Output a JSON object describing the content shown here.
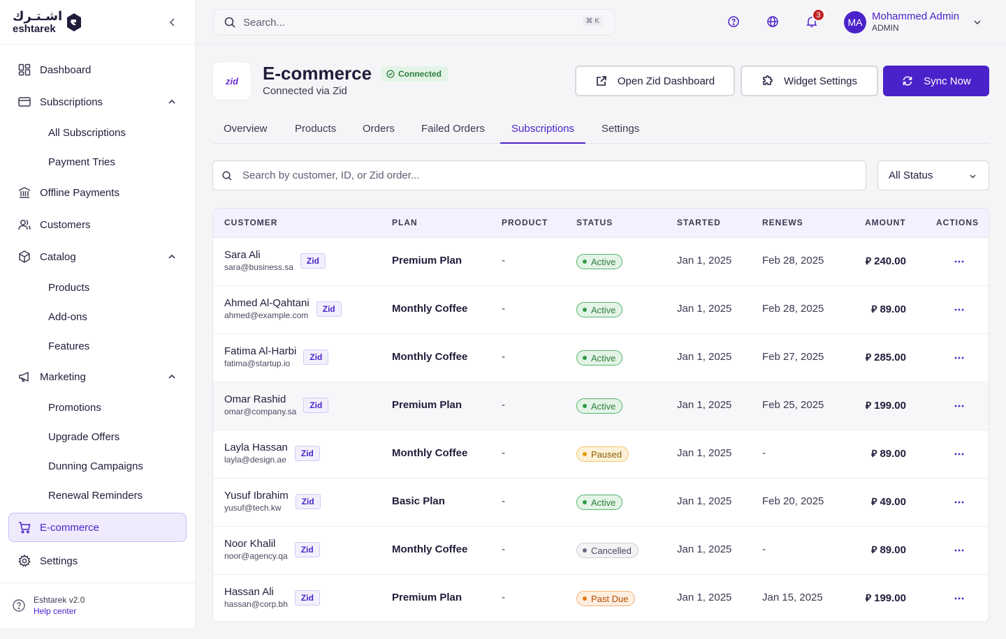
{
  "brand": {
    "arabic": "اشـتـرك",
    "english": "eshtarek"
  },
  "sidebar": {
    "items": [
      {
        "label": "Dashboard",
        "icon": "grid-icon"
      },
      {
        "label": "Subscriptions",
        "icon": "card-icon",
        "children": [
          "All Subscriptions",
          "Payment Tries"
        ]
      },
      {
        "label": "Offline Payments",
        "icon": "bank-icon"
      },
      {
        "label": "Customers",
        "icon": "users-icon"
      },
      {
        "label": "Catalog",
        "icon": "box-icon",
        "children": [
          "Products",
          "Add-ons",
          "Features"
        ]
      },
      {
        "label": "Marketing",
        "icon": "megaphone-icon",
        "children": [
          "Promotions",
          "Upgrade Offers",
          "Dunning Campaigns",
          "Renewal Reminders"
        ]
      },
      {
        "label": "E-commerce",
        "icon": "cart-icon",
        "active": true
      },
      {
        "label": "Settings",
        "icon": "gear-icon"
      }
    ],
    "footer": {
      "version": "Eshtarek v2.0",
      "help": "Help center"
    }
  },
  "topbar": {
    "search_placeholder": "Search...",
    "shortcut": "⌘ K",
    "notifications_count": "3",
    "user": {
      "initials": "MA",
      "name": "Mohammed Admin",
      "role": "ADMIN"
    }
  },
  "header": {
    "logo_text": "zid",
    "title": "E-commerce",
    "badge": "Connected",
    "subtitle": "Connected via Zid",
    "buttons": {
      "open_dashboard": "Open Zid Dashboard",
      "widget_settings": "Widget Settings",
      "sync_now": "Sync Now"
    }
  },
  "tabs": [
    "Overview",
    "Products",
    "Orders",
    "Failed Orders",
    "Subscriptions",
    "Settings"
  ],
  "active_tab": "Subscriptions",
  "filters": {
    "search_placeholder": "Search by customer, ID, or Zid order...",
    "status_value": "All Status"
  },
  "table": {
    "columns": [
      "CUSTOMER",
      "PLAN",
      "PRODUCT",
      "STATUS",
      "STARTED",
      "RENEWS",
      "AMOUNT",
      "ACTIONS"
    ],
    "source_badge": "Zid",
    "currency_symbol": "⃁",
    "rows": [
      {
        "name": "Sara Ali",
        "email": "sara@business.sa",
        "plan": "Premium Plan",
        "product": "-",
        "status": "Active",
        "started": "Jan 1, 2025",
        "renews": "Feb 28, 2025",
        "amount": "240.00"
      },
      {
        "name": "Ahmed Al-Qahtani",
        "email": "ahmed@example.com",
        "plan": "Monthly Coffee",
        "product": "-",
        "status": "Active",
        "started": "Jan 1, 2025",
        "renews": "Feb 28, 2025",
        "amount": "89.00"
      },
      {
        "name": "Fatima Al-Harbi",
        "email": "fatima@startup.io",
        "plan": "Monthly Coffee",
        "product": "-",
        "status": "Active",
        "started": "Jan 1, 2025",
        "renews": "Feb 27, 2025",
        "amount": "285.00"
      },
      {
        "name": "Omar Rashid",
        "email": "omar@company.sa",
        "plan": "Premium Plan",
        "product": "-",
        "status": "Active",
        "started": "Jan 1, 2025",
        "renews": "Feb 25, 2025",
        "amount": "199.00"
      },
      {
        "name": "Layla Hassan",
        "email": "layla@design.ae",
        "plan": "Monthly Coffee",
        "product": "-",
        "status": "Paused",
        "started": "Jan 1, 2025",
        "renews": "-",
        "amount": "89.00"
      },
      {
        "name": "Yusuf Ibrahim",
        "email": "yusuf@tech.kw",
        "plan": "Basic Plan",
        "product": "-",
        "status": "Active",
        "started": "Jan 1, 2025",
        "renews": "Feb 20, 2025",
        "amount": "49.00"
      },
      {
        "name": "Noor Khalil",
        "email": "noor@agency.qa",
        "plan": "Monthly Coffee",
        "product": "-",
        "status": "Cancelled",
        "started": "Jan 1, 2025",
        "renews": "-",
        "amount": "89.00"
      },
      {
        "name": "Hassan Ali",
        "email": "hassan@corp.bh",
        "plan": "Premium Plan",
        "product": "-",
        "status": "Past Due",
        "started": "Jan 1, 2025",
        "renews": "Jan 15, 2025",
        "amount": "199.00"
      }
    ]
  },
  "colors": {
    "accent": "#4b22c9",
    "active_status": "#2f7d3d",
    "paused_status": "#8a5b00",
    "pastdue_status": "#b34c00"
  }
}
